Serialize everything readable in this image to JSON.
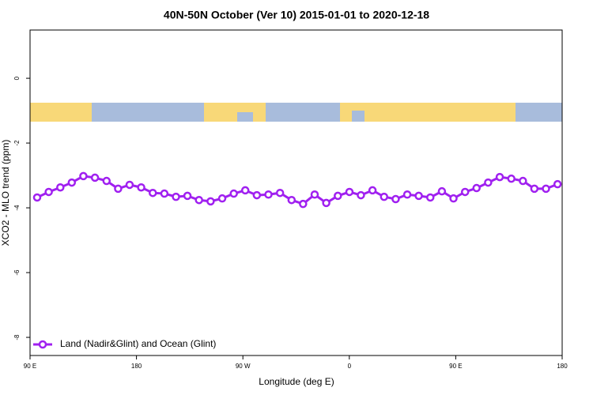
{
  "chart_data": {
    "type": "line",
    "title": "40N-50N October (Ver 10)   2015-01-01 to 2020-12-18",
    "x_label": "Longitude (deg E)",
    "y_label": "XCO2 - MLO trend (ppm)",
    "xlim": [
      90,
      540
    ],
    "ylim": [
      -8.56,
      1.49
    ],
    "xticks": [
      {
        "value": 90,
        "label": "90 E"
      },
      180,
      {
        "value": 270,
        "label": "90 W"
      },
      {
        "value": 360,
        "label": "0"
      },
      {
        "value": 450,
        "label": "90 E"
      },
      {
        "value": 540,
        "label": "180"
      }
    ],
    "yticks": [
      -8,
      -6,
      -4,
      -2,
      0
    ],
    "legend": "bottom-left",
    "series": [
      {
        "name": "Land (Nadir&Glint) and Ocean (Glint)",
        "color": "#a020f0",
        "x": [
          96.0,
          105.8,
          115.6,
          125.3,
          135.1,
          144.9,
          154.7,
          164.5,
          174.2,
          184.0,
          193.8,
          203.6,
          213.4,
          223.1,
          232.9,
          242.7,
          252.5,
          262.3,
          272.0,
          281.8,
          291.6,
          301.4,
          311.2,
          320.9,
          330.7,
          340.5,
          350.3,
          360.1,
          369.8,
          379.6,
          389.4,
          399.2,
          409.0,
          418.7,
          428.5,
          438.3,
          448.1,
          457.9,
          467.6,
          477.4,
          487.2,
          497.0,
          506.8,
          516.5,
          526.3,
          536.1
        ],
        "values": [
          -3.68,
          -3.51,
          -3.37,
          -3.22,
          -3.02,
          -3.07,
          -3.17,
          -3.41,
          -3.29,
          -3.37,
          -3.54,
          -3.56,
          -3.66,
          -3.63,
          -3.76,
          -3.8,
          -3.71,
          -3.56,
          -3.46,
          -3.61,
          -3.59,
          -3.54,
          -3.76,
          -3.88,
          -3.59,
          -3.85,
          -3.63,
          -3.51,
          -3.61,
          -3.46,
          -3.66,
          -3.73,
          -3.59,
          -3.63,
          -3.68,
          -3.49,
          -3.71,
          -3.51,
          -3.39,
          -3.22,
          -3.05,
          -3.1,
          -3.17,
          -3.41,
          -3.41,
          -3.27
        ]
      }
    ]
  }
}
